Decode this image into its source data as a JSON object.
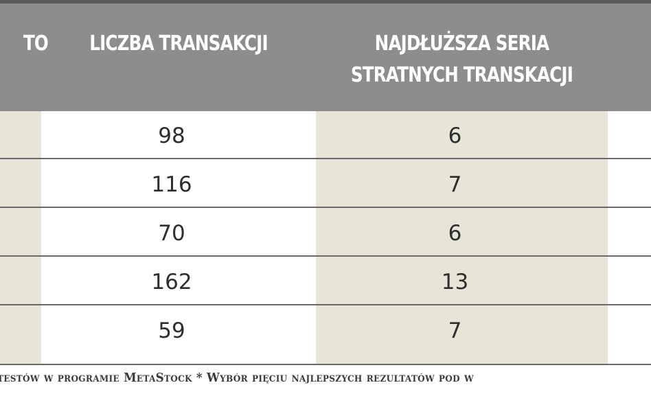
{
  "table": {
    "headers": {
      "first_col": "TO",
      "transactions": "LICZBA TRANSAKCJI",
      "longest_series_line1": "NAJDŁUŻSZA SERIA",
      "longest_series_line2": "STRATNYCH TRANSKACJI"
    },
    "rows": [
      {
        "transactions": "98",
        "longest_series": "6"
      },
      {
        "transactions": "116",
        "longest_series": "7"
      },
      {
        "transactions": "70",
        "longest_series": "6"
      },
      {
        "transactions": "162",
        "longest_series": "13"
      },
      {
        "transactions": "59",
        "longest_series": "7"
      }
    ]
  },
  "footnote": "testów w programie MetaStock * Wybór pięciu najlepszych rezultatów pod w",
  "colors": {
    "header_bg": "#8d8d8d",
    "shaded_col": "#e7e4d8",
    "row_line": "#6a6a6a"
  }
}
